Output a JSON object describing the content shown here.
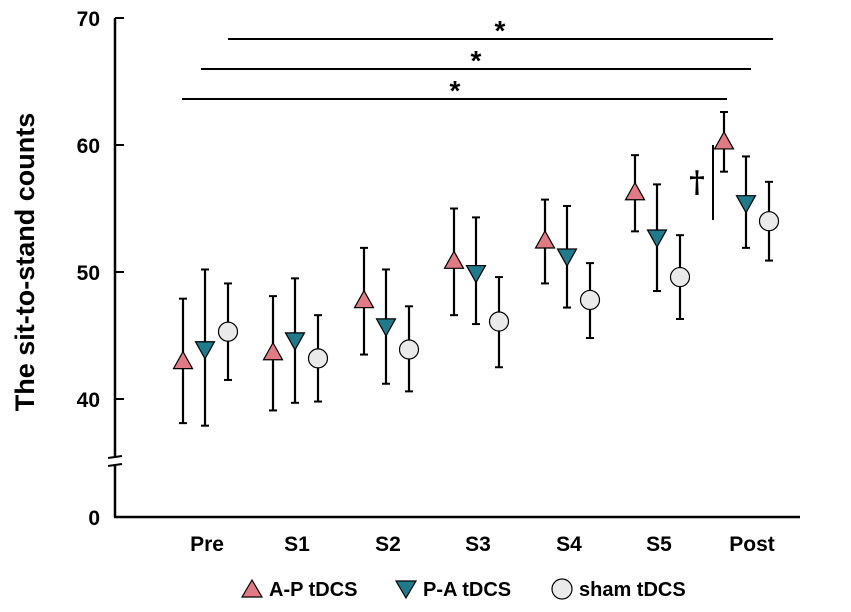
{
  "chart_data": {
    "type": "scatter",
    "title": "",
    "xlabel": "",
    "ylabel": "The sit-to-stand counts",
    "categories": [
      "Pre",
      "S1",
      "S2",
      "S3",
      "S4",
      "S5",
      "Post"
    ],
    "yticks": [
      "0",
      "40",
      "50",
      "60",
      "70"
    ],
    "ylim": [
      37,
      70
    ],
    "y_axis_break": "between 0 and 37",
    "series": [
      {
        "name": "A-P tDCS",
        "marker": "triangle-up",
        "color": "#E07B85",
        "means": [
          42.9,
          43.6,
          47.7,
          50.8,
          52.4,
          56.2,
          60.2
        ],
        "lower": [
          38.1,
          39.1,
          43.5,
          46.6,
          49.1,
          53.2,
          57.9
        ],
        "upper": [
          47.9,
          48.1,
          51.9,
          55.0,
          55.7,
          59.2,
          62.6
        ]
      },
      {
        "name": "P-A tDCS",
        "marker": "triangle-down",
        "color": "#1F7A8C",
        "means": [
          44.0,
          44.7,
          45.8,
          50.0,
          51.3,
          52.8,
          55.5
        ],
        "lower": [
          37.9,
          39.7,
          41.2,
          45.9,
          47.2,
          48.5,
          51.9
        ],
        "upper": [
          50.2,
          49.5,
          50.2,
          54.3,
          55.2,
          56.9,
          59.1
        ]
      },
      {
        "name": "sham tDCS",
        "marker": "circle",
        "color": "#EAEAEA",
        "means": [
          45.3,
          43.2,
          43.9,
          46.1,
          47.8,
          49.6,
          54.0
        ],
        "lower": [
          41.5,
          39.8,
          40.6,
          42.5,
          44.8,
          46.3,
          50.9
        ],
        "upper": [
          49.1,
          46.6,
          47.3,
          49.6,
          50.7,
          52.9,
          57.1
        ]
      }
    ],
    "annotations": [
      {
        "text": "*",
        "from": "Pre",
        "to": "Post",
        "series_from": "A-P tDCS",
        "series_to": "A-P tDCS"
      },
      {
        "text": "*",
        "from": "Pre",
        "to": "Post",
        "series_from": "P-A tDCS",
        "series_to": "P-A tDCS"
      },
      {
        "text": "*",
        "from": "Pre",
        "to": "Post",
        "series_from": "sham tDCS",
        "series_to": "sham tDCS"
      },
      {
        "text": "†",
        "at": "Post",
        "between": [
          "A-P tDCS",
          "sham tDCS"
        ]
      }
    ],
    "legend": "bottom-center"
  }
}
